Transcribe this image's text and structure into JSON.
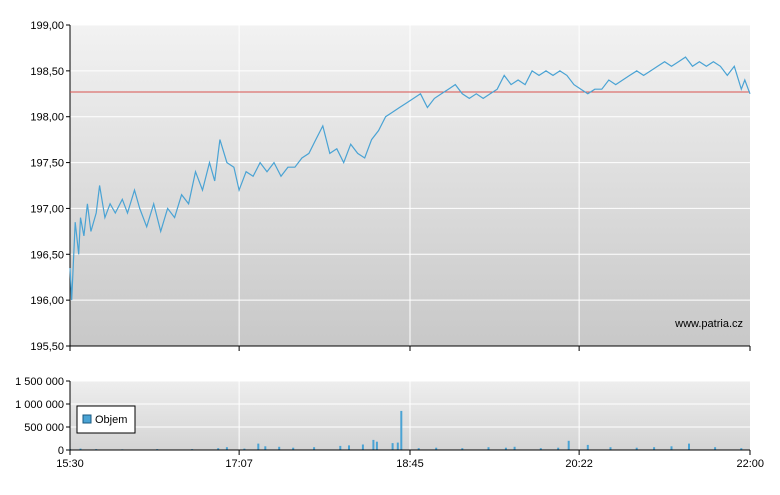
{
  "colors": {
    "price_line": "#4aa3d4",
    "reference_line": "#d9534f",
    "volume_bar": "#4aa3d4",
    "grid": "#ffffff",
    "plot_bg_top": "#f2f2f2",
    "plot_bg_bottom": "#c8c8c8"
  },
  "watermark": "www.patria.cz",
  "chart_data": [
    {
      "type": "line",
      "name": "price",
      "y_ticks": [
        "199,00",
        "198,50",
        "198,00",
        "197,50",
        "197,00",
        "196,50",
        "196,00",
        "195,50"
      ],
      "ylim": [
        195.5,
        199.0
      ],
      "xlim_minutes": [
        930,
        1320
      ],
      "x_ticks": [
        "15:30",
        "17:07",
        "18:45",
        "20:22",
        "22:00"
      ],
      "reference_value": 198.27,
      "points": [
        [
          "15:30",
          196.35
        ],
        [
          "15:31",
          196.0
        ],
        [
          "15:33",
          196.85
        ],
        [
          "15:35",
          196.5
        ],
        [
          "15:36",
          196.9
        ],
        [
          "15:38",
          196.7
        ],
        [
          "15:40",
          197.05
        ],
        [
          "15:42",
          196.75
        ],
        [
          "15:45",
          196.95
        ],
        [
          "15:47",
          197.25
        ],
        [
          "15:50",
          196.9
        ],
        [
          "15:53",
          197.05
        ],
        [
          "15:56",
          196.95
        ],
        [
          "16:00",
          197.1
        ],
        [
          "16:03",
          196.95
        ],
        [
          "16:07",
          197.2
        ],
        [
          "16:10",
          197.0
        ],
        [
          "16:14",
          196.8
        ],
        [
          "16:18",
          197.05
        ],
        [
          "16:22",
          196.75
        ],
        [
          "16:26",
          197.0
        ],
        [
          "16:30",
          196.9
        ],
        [
          "16:34",
          197.15
        ],
        [
          "16:38",
          197.05
        ],
        [
          "16:42",
          197.4
        ],
        [
          "16:46",
          197.2
        ],
        [
          "16:50",
          197.5
        ],
        [
          "16:53",
          197.3
        ],
        [
          "16:56",
          197.75
        ],
        [
          "17:00",
          197.5
        ],
        [
          "17:04",
          197.45
        ],
        [
          "17:07",
          197.2
        ],
        [
          "17:11",
          197.4
        ],
        [
          "17:15",
          197.35
        ],
        [
          "17:19",
          197.5
        ],
        [
          "17:23",
          197.4
        ],
        [
          "17:27",
          197.5
        ],
        [
          "17:31",
          197.35
        ],
        [
          "17:35",
          197.45
        ],
        [
          "17:39",
          197.45
        ],
        [
          "17:43",
          197.55
        ],
        [
          "17:47",
          197.6
        ],
        [
          "17:51",
          197.75
        ],
        [
          "17:55",
          197.9
        ],
        [
          "17:59",
          197.6
        ],
        [
          "18:03",
          197.65
        ],
        [
          "18:07",
          197.5
        ],
        [
          "18:11",
          197.7
        ],
        [
          "18:15",
          197.6
        ],
        [
          "18:19",
          197.55
        ],
        [
          "18:23",
          197.75
        ],
        [
          "18:27",
          197.85
        ],
        [
          "18:31",
          198.0
        ],
        [
          "18:35",
          198.05
        ],
        [
          "18:39",
          198.1
        ],
        [
          "18:43",
          198.15
        ],
        [
          "18:47",
          198.2
        ],
        [
          "18:51",
          198.25
        ],
        [
          "18:55",
          198.1
        ],
        [
          "18:59",
          198.2
        ],
        [
          "19:03",
          198.25
        ],
        [
          "19:07",
          198.3
        ],
        [
          "19:11",
          198.35
        ],
        [
          "19:15",
          198.25
        ],
        [
          "19:19",
          198.2
        ],
        [
          "19:23",
          198.25
        ],
        [
          "19:27",
          198.2
        ],
        [
          "19:31",
          198.25
        ],
        [
          "19:35",
          198.3
        ],
        [
          "19:39",
          198.45
        ],
        [
          "19:43",
          198.35
        ],
        [
          "19:47",
          198.4
        ],
        [
          "19:51",
          198.35
        ],
        [
          "19:55",
          198.5
        ],
        [
          "19:59",
          198.45
        ],
        [
          "20:03",
          198.5
        ],
        [
          "20:07",
          198.45
        ],
        [
          "20:11",
          198.5
        ],
        [
          "20:15",
          198.45
        ],
        [
          "20:19",
          198.35
        ],
        [
          "20:23",
          198.3
        ],
        [
          "20:27",
          198.25
        ],
        [
          "20:31",
          198.3
        ],
        [
          "20:35",
          198.3
        ],
        [
          "20:39",
          198.4
        ],
        [
          "20:43",
          198.35
        ],
        [
          "20:47",
          198.4
        ],
        [
          "20:51",
          198.45
        ],
        [
          "20:55",
          198.5
        ],
        [
          "20:59",
          198.45
        ],
        [
          "21:03",
          198.5
        ],
        [
          "21:07",
          198.55
        ],
        [
          "21:11",
          198.6
        ],
        [
          "21:15",
          198.55
        ],
        [
          "21:19",
          198.6
        ],
        [
          "21:23",
          198.65
        ],
        [
          "21:27",
          198.55
        ],
        [
          "21:31",
          198.6
        ],
        [
          "21:35",
          198.55
        ],
        [
          "21:39",
          198.6
        ],
        [
          "21:43",
          198.55
        ],
        [
          "21:47",
          198.45
        ],
        [
          "21:51",
          198.55
        ],
        [
          "21:55",
          198.3
        ],
        [
          "21:57",
          198.4
        ],
        [
          "22:00",
          198.25
        ]
      ]
    },
    {
      "type": "bar",
      "name": "volume",
      "legend": "Objem",
      "y_ticks": [
        "1 500 000",
        "1 000 000",
        "500 000",
        "0"
      ],
      "ylim": [
        0,
        1500000
      ],
      "x_ticks": [
        "15:30",
        "17:07",
        "18:45",
        "20:22",
        "22:00"
      ],
      "bars": [
        [
          "15:30",
          20000
        ],
        [
          "15:36",
          30000
        ],
        [
          "15:45",
          20000
        ],
        [
          "16:00",
          15000
        ],
        [
          "16:20",
          20000
        ],
        [
          "16:40",
          20000
        ],
        [
          "16:55",
          40000
        ],
        [
          "17:00",
          60000
        ],
        [
          "17:10",
          30000
        ],
        [
          "17:18",
          140000
        ],
        [
          "17:22",
          80000
        ],
        [
          "17:30",
          70000
        ],
        [
          "17:38",
          50000
        ],
        [
          "17:50",
          60000
        ],
        [
          "18:05",
          90000
        ],
        [
          "18:10",
          100000
        ],
        [
          "18:18",
          120000
        ],
        [
          "18:24",
          220000
        ],
        [
          "18:26",
          180000
        ],
        [
          "18:35",
          150000
        ],
        [
          "18:38",
          160000
        ],
        [
          "18:40",
          850000
        ],
        [
          "18:50",
          40000
        ],
        [
          "19:00",
          50000
        ],
        [
          "19:15",
          40000
        ],
        [
          "19:30",
          60000
        ],
        [
          "19:40",
          50000
        ],
        [
          "19:45",
          70000
        ],
        [
          "20:00",
          40000
        ],
        [
          "20:10",
          50000
        ],
        [
          "20:16",
          200000
        ],
        [
          "20:27",
          110000
        ],
        [
          "20:40",
          60000
        ],
        [
          "20:55",
          50000
        ],
        [
          "21:05",
          60000
        ],
        [
          "21:15",
          80000
        ],
        [
          "21:25",
          140000
        ],
        [
          "21:40",
          60000
        ],
        [
          "21:55",
          40000
        ]
      ]
    }
  ]
}
